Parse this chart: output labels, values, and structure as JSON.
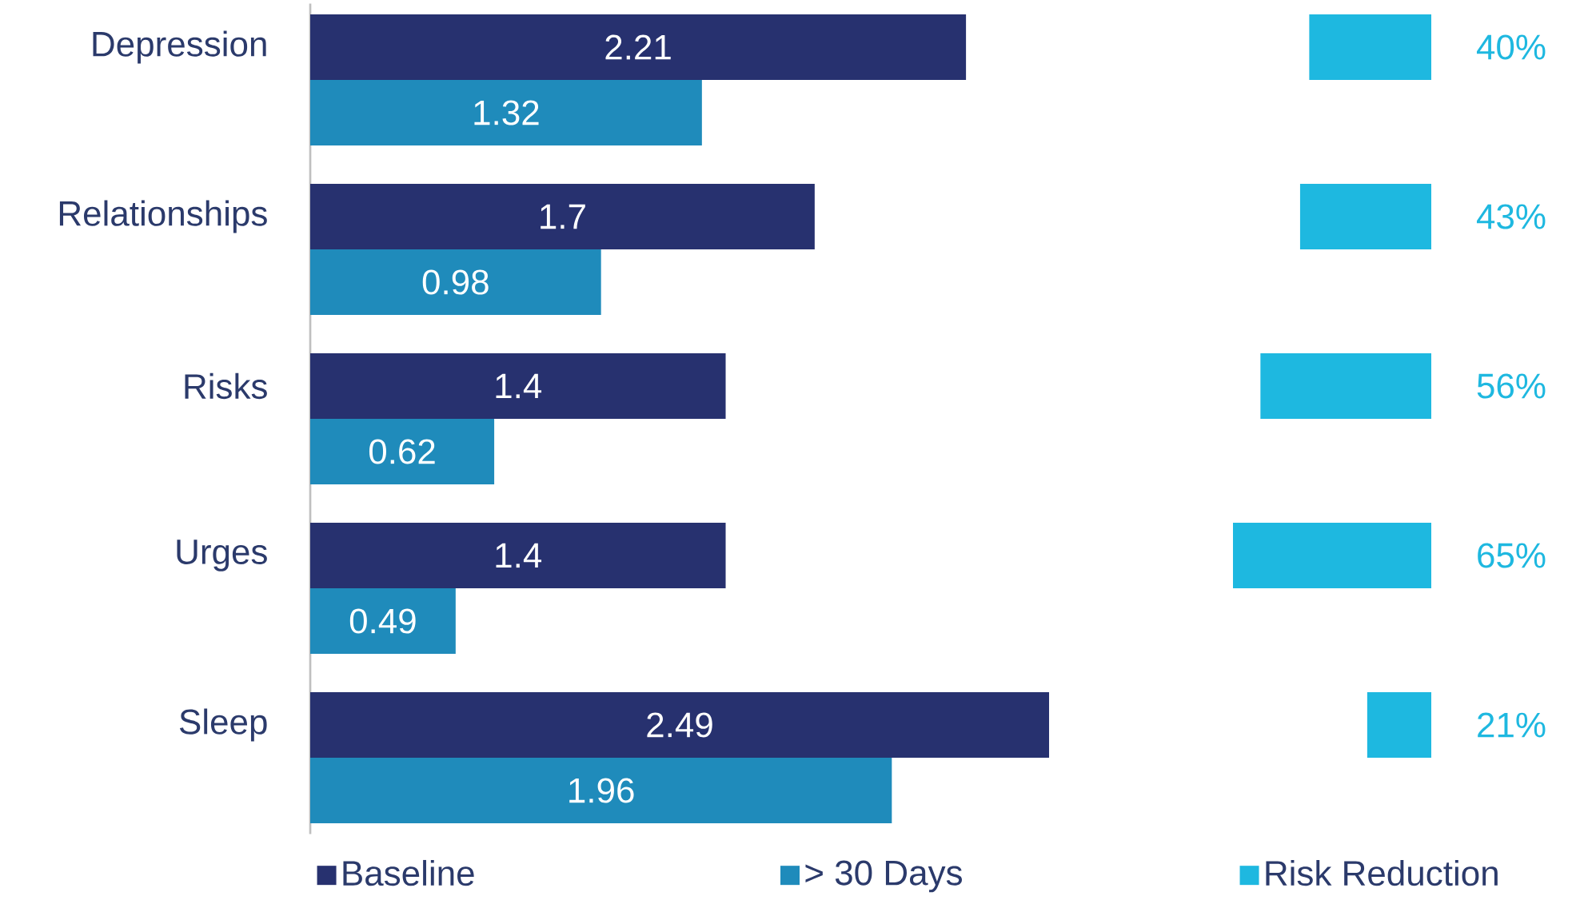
{
  "chart_data": [
    {
      "type": "bar",
      "orientation": "horizontal",
      "categories": [
        "Depression",
        "Relationships",
        "Risks",
        "Urges",
        "Sleep"
      ],
      "tick_labels": "y",
      "data_labels": true,
      "legend": "bottom",
      "series": [
        {
          "name": "Baseline",
          "color": "#27316f",
          "values": [
            2.21,
            1.7,
            1.4,
            1.4,
            2.49
          ]
        },
        {
          "name": "> 30 Days",
          "color": "#1f8bbb",
          "values": [
            1.32,
            0.98,
            0.62,
            0.49,
            1.96
          ]
        }
      ]
    },
    {
      "type": "bar",
      "orientation": "horizontal",
      "categories": [
        null,
        null,
        null,
        null,
        null
      ],
      "legend": "bottom",
      "series": [
        {
          "name": "Risk Reduction",
          "color": "#1eb8e0",
          "values": [
            40,
            43,
            56,
            65,
            21
          ],
          "value_labels": [
            "40%",
            "43%",
            "56%",
            "65%",
            "21%"
          ]
        }
      ]
    }
  ]
}
